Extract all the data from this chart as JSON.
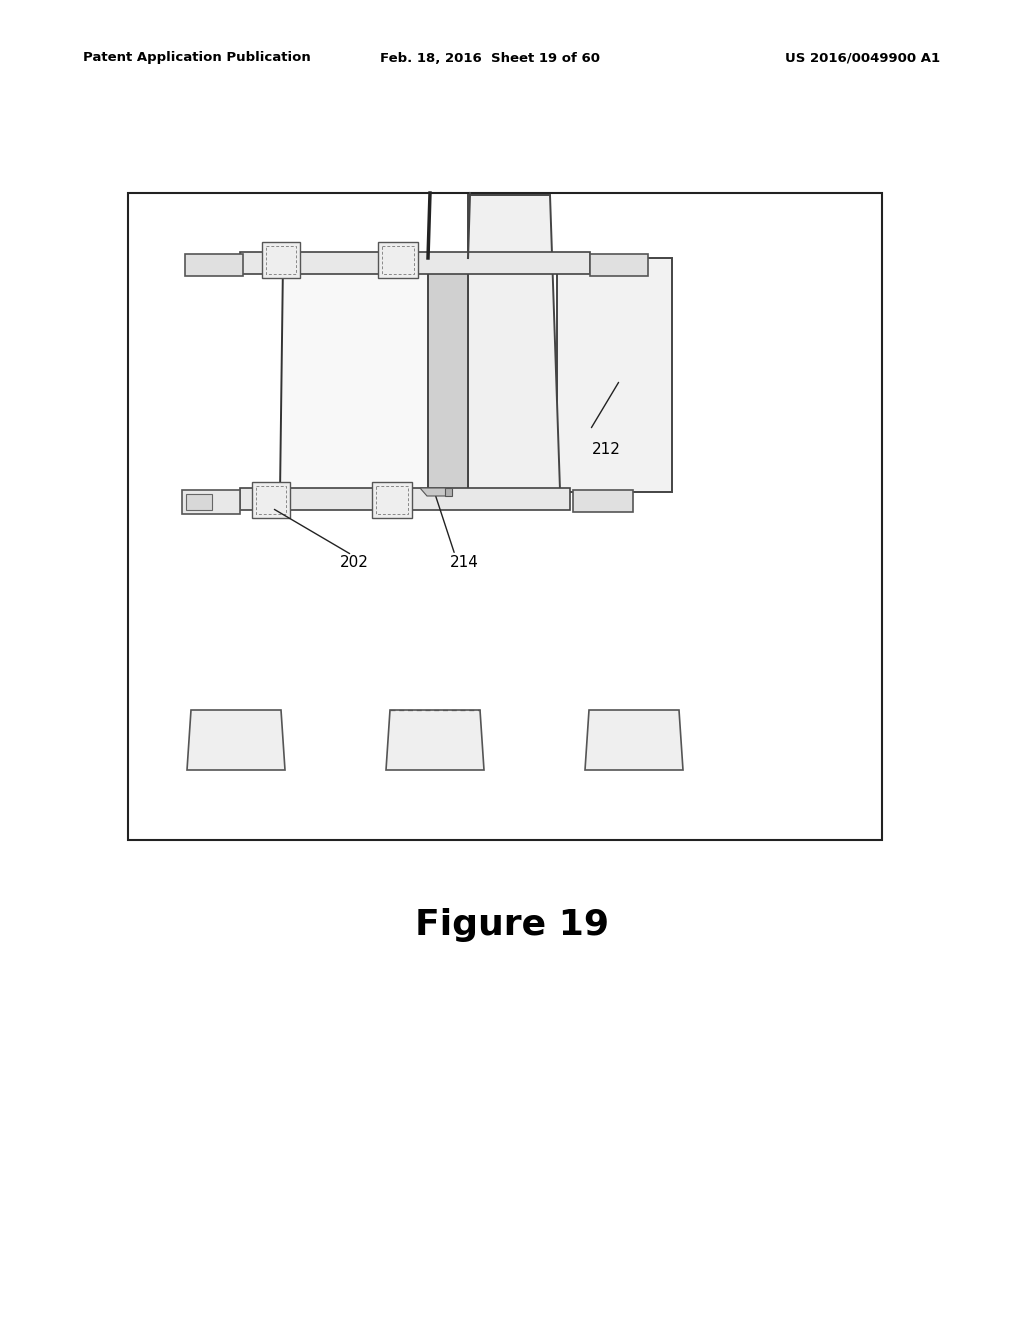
{
  "page_title_left": "Patent Application Publication",
  "page_title_mid": "Feb. 18, 2016  Sheet 19 of 60",
  "page_title_right": "US 2016/0049900 A1",
  "figure_label": "Figure 19",
  "bg_color": "#ffffff",
  "label_212": "212",
  "label_202": "202",
  "label_214": "214",
  "lw_main": 1.4,
  "lw_rail": 1.2,
  "lw_conn": 1.0
}
